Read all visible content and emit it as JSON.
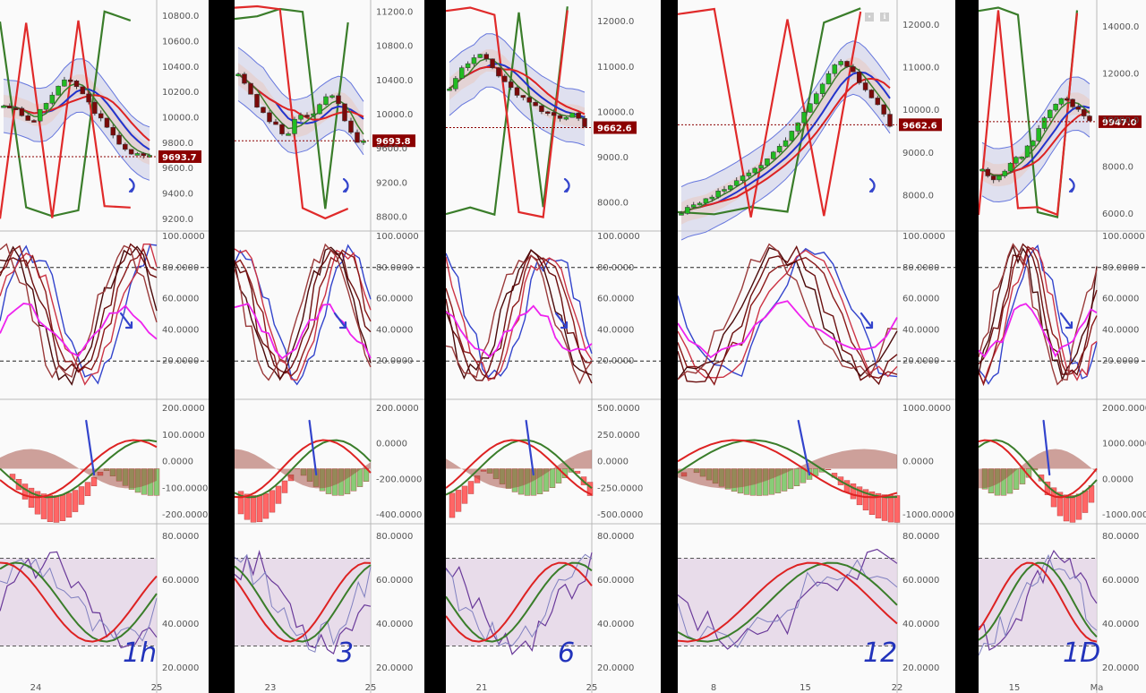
{
  "timeframes": [
    {
      "label": "1h",
      "price": "9693.7",
      "xticks": [
        "24",
        "25"
      ],
      "price_axis": [
        "10800.0",
        "10600.0",
        "10400.0",
        "10200.0",
        "10000.0",
        "9800.0",
        "9600.0",
        "9400.0",
        "9200.0"
      ],
      "macd_axis": [
        "200.0000",
        "100.0000",
        "0.0000",
        "-100.0000",
        "-200.0000"
      ]
    },
    {
      "label": "3",
      "price": "9693.8",
      "xticks": [
        "23",
        "25"
      ],
      "price_axis": [
        "11200.0",
        "10800.0",
        "10400.0",
        "10000.0",
        "9600.0",
        "9200.0",
        "8800.0"
      ],
      "macd_axis": [
        "200.0000",
        "0.0000",
        "-200.0000",
        "-400.0000"
      ]
    },
    {
      "label": "6",
      "price": "9662.6",
      "xticks": [
        "21",
        "25"
      ],
      "price_axis": [
        "12000.0",
        "11000.0",
        "10000.0",
        "9000.0",
        "8000.0"
      ],
      "macd_axis": [
        "500.0000",
        "250.0000",
        "0.0000",
        "-250.0000",
        "-500.0000"
      ]
    },
    {
      "label": "12",
      "price": "9662.6",
      "xticks": [
        "8",
        "15",
        "22"
      ],
      "price_axis": [
        "12000.0",
        "11000.0",
        "10000.0",
        "9000.0",
        "8000.0"
      ],
      "macd_axis": [
        "1000.0000",
        "0.0000",
        "-1000.0000"
      ]
    },
    {
      "label": "1D",
      "price": "9947.0",
      "xticks": [
        "15",
        "Ma"
      ],
      "price_axis": [
        "14000.0",
        "12000.0",
        "10000.0",
        "8000.0",
        "6000.0"
      ],
      "macd_axis": [
        "2000.0000",
        "1000.0000",
        "0.0000",
        "-1000.0000"
      ]
    }
  ],
  "stoch_axis": [
    "100.0000",
    "80.0000",
    "60.0000",
    "40.0000",
    "20.0000"
  ],
  "rsi_axis": [
    "80.0000",
    "60.0000",
    "40.0000",
    "20.0000"
  ],
  "chart_data": [
    {
      "type": "line",
      "timeframe": "1h",
      "last_price": 9693.7,
      "ylim": [
        9150,
        10900
      ],
      "close": [
        10100,
        10080,
        10020,
        9950,
        10050,
        10150,
        10250,
        10300,
        10250,
        10150,
        10050,
        9950,
        9850,
        9780,
        9720,
        9700,
        9693.7
      ]
    },
    {
      "type": "line",
      "timeframe": "3",
      "last_price": 9693.8,
      "ylim": [
        8700,
        11300
      ],
      "close": [
        10500,
        10300,
        10100,
        9950,
        9850,
        9750,
        10000,
        9950,
        10050,
        10200,
        10250,
        9950,
        9700,
        9693.8
      ]
    },
    {
      "type": "line",
      "timeframe": "6",
      "last_price": 9662.6,
      "ylim": [
        7500,
        12400
      ],
      "close": [
        10500,
        10900,
        11100,
        11300,
        11000,
        10700,
        10500,
        10300,
        10200,
        10000,
        9900,
        9800,
        10000,
        9662.6
      ]
    },
    {
      "type": "line",
      "timeframe": "12",
      "last_price": 9662.6,
      "ylim": [
        7300,
        12500
      ],
      "close": [
        7600,
        7800,
        7900,
        8100,
        8300,
        8500,
        8700,
        9000,
        9300,
        9700,
        10200,
        10700,
        11200,
        11000,
        10500,
        10200,
        9662.6
      ]
    },
    {
      "type": "line",
      "timeframe": "1D",
      "last_price": 9947.0,
      "ylim": [
        5500,
        15000
      ],
      "close": [
        8000,
        7500,
        7800,
        8200,
        8500,
        9000,
        9800,
        10500,
        11000,
        10800,
        10300,
        9947
      ]
    }
  ]
}
